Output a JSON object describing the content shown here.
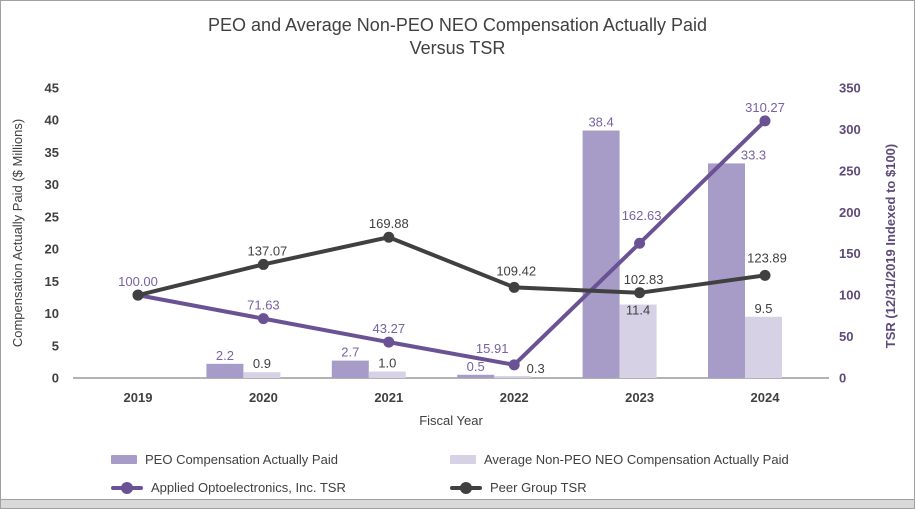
{
  "title_lines": [
    "PEO and Average Non-PEO NEO Compensation Actually Paid",
    "Versus TSR"
  ],
  "chart_data": {
    "type": "combo-bar-line",
    "categories": [
      "2019",
      "2020",
      "2021",
      "2022",
      "2023",
      "2024"
    ],
    "x_axis_label": "Fiscal Year",
    "left_axis": {
      "title": "Compensation Actually Paid ($ Millions)",
      "min": 0,
      "max": 45,
      "step": 5,
      "tick_labels": [
        "0",
        "5",
        "10",
        "15",
        "20",
        "25",
        "30",
        "35",
        "40",
        "45"
      ]
    },
    "right_axis": {
      "title": "TSR (12/31/2019 Indexed to $100)",
      "min": 0,
      "max": 350,
      "step": 50,
      "tick_labels": [
        "0",
        "50",
        "100",
        "150",
        "200",
        "250",
        "300",
        "350"
      ]
    },
    "gridlines": false,
    "legend_position": "bottom",
    "bar_series": [
      {
        "name": "PEO Compensation Actually Paid",
        "axis": "left",
        "color": "#a79cc8",
        "label_color": "#7862a3",
        "values": [
          null,
          2.2,
          2.7,
          0.5,
          38.4,
          33.3
        ],
        "labels": [
          "",
          "2.2",
          "2.7",
          "0.5",
          "38.4",
          "33.3"
        ],
        "label_offsets": [
          null,
          null,
          null,
          null,
          null,
          [
            27,
            0
          ]
        ]
      },
      {
        "name": "Average Non-PEO NEO Compensation Actually Paid",
        "axis": "left",
        "color": "#d7d1e6",
        "label_color": "#404040",
        "values": [
          null,
          0.9,
          1.0,
          0.3,
          11.4,
          9.5
        ],
        "labels": [
          "",
          "0.9",
          "1.0",
          "0.3",
          "11.4",
          "9.5"
        ],
        "label_offsets": [
          null,
          null,
          null,
          [
            23,
            1
          ],
          [
            0,
            14
          ],
          null
        ]
      }
    ],
    "line_series": [
      {
        "name": "Applied Optoelectronics, Inc. TSR",
        "axis": "right",
        "color": "#6a5295",
        "label_color": "#7862a3",
        "values": [
          100.0,
          71.63,
          43.27,
          15.91,
          162.63,
          310.27
        ],
        "labels": [
          "100.00",
          "71.63",
          "43.27",
          "15.91",
          "162.63",
          "310.27"
        ],
        "label_offsets": [
          null,
          null,
          null,
          [
            -22,
            -3
          ],
          [
            2,
            -14
          ],
          null
        ]
      },
      {
        "name": "Peer Group TSR",
        "axis": "right",
        "color": "#404040",
        "label_color": "#404040",
        "values": [
          100.0,
          137.07,
          169.88,
          109.42,
          102.83,
          123.89
        ],
        "labels": [
          "",
          "137.07",
          "169.88",
          "109.42",
          "102.83",
          "123.89"
        ],
        "label_offsets": [
          null,
          [
            4,
            0
          ],
          null,
          [
            2,
            -3
          ],
          [
            4,
            0
          ],
          [
            2,
            -4
          ]
        ]
      }
    ]
  },
  "colors": {
    "title_text": "#404040",
    "axis_line": "#b3b3b3",
    "right_axis_text": "#5d4a79"
  }
}
